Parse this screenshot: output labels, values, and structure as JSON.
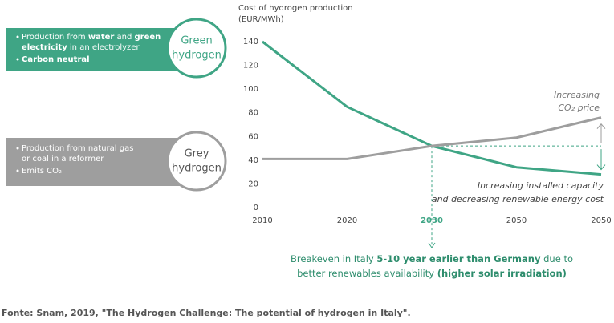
{
  "chart_data": {
    "type": "line",
    "title": [
      "Cost of hydrogen production",
      "(EUR/MWh)"
    ],
    "categories": [
      "2010",
      "2020",
      "2030",
      "2050",
      "2050"
    ],
    "series": [
      {
        "name": "Green hydrogen",
        "color": "#3fa585",
        "values": [
          140,
          85,
          52,
          34,
          28
        ]
      },
      {
        "name": "Grey hydrogen",
        "color": "#9e9e9e",
        "values": [
          41,
          41,
          52,
          59,
          76
        ]
      }
    ],
    "ylim": [
      0,
      140
    ],
    "yticks": [
      0,
      20,
      40,
      60,
      80,
      100,
      120,
      140
    ],
    "annotations": {
      "co2": [
        "Increasing",
        "CO₂ price"
      ],
      "renewables": [
        "Increasing installed capacity",
        "and decreasing renewable energy cost"
      ]
    },
    "breakeven": [
      [
        {
          "text": "Breakeven in Italy ",
          "bold": false
        },
        {
          "text": "5-10 year earlier than Germany",
          "bold": true
        },
        {
          "text": " due to",
          "bold": false
        }
      ],
      [
        {
          "text": "better renewables availability ",
          "bold": false
        },
        {
          "text": "(higher solar irradiation)",
          "bold": true
        }
      ]
    ]
  },
  "panels": [
    {
      "label": [
        "Green",
        "hydrogen"
      ],
      "bullets": [
        [
          [
            {
              "text": "Production from ",
              "bold": false
            },
            {
              "text": "water",
              "bold": true
            },
            {
              "text": " and ",
              "bold": false
            },
            {
              "text": "green",
              "bold": true
            }
          ],
          [
            {
              "text": "electricity",
              "bold": true
            },
            {
              "text": " in an electrolyzer",
              "bold": false
            }
          ]
        ],
        [
          [
            {
              "text": "Carbon neutral",
              "bold": true
            }
          ]
        ]
      ]
    },
    {
      "label": [
        "Grey",
        "hydrogen"
      ],
      "bullets": [
        [
          [
            {
              "text": "Production from natural gas",
              "bold": false
            }
          ],
          [
            {
              "text": "or coal in a reformer",
              "bold": false
            }
          ]
        ],
        [
          [
            {
              "text": "Emits CO₂",
              "bold": false
            }
          ]
        ]
      ]
    }
  ],
  "source": "Fonte: Snam, 2019, \"The Hydrogen Challenge: The potential of hydrogen in Italy\"."
}
